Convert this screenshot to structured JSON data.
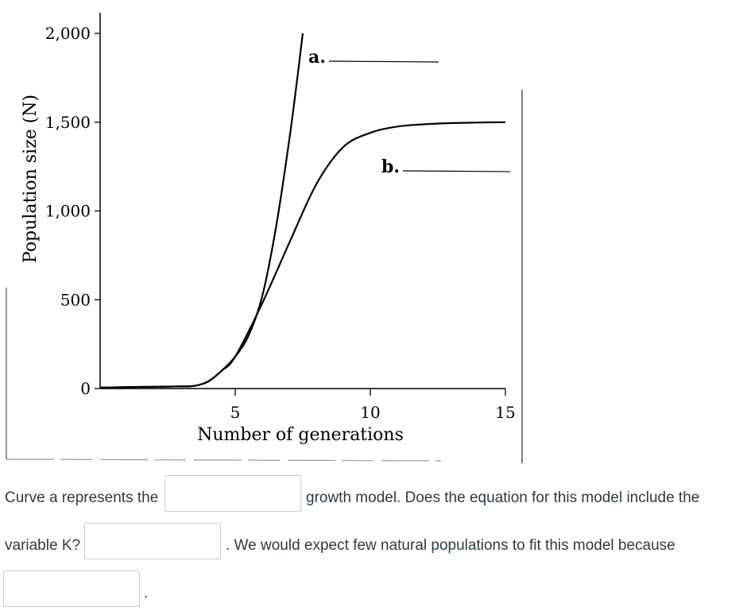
{
  "chart_data": {
    "type": "line",
    "xlabel": "Number of generations",
    "ylabel": "Population size (N)",
    "x_ticks": [
      5,
      10,
      15
    ],
    "y_ticks": [
      "0",
      "500",
      "1,000",
      "1,500",
      "2,000"
    ],
    "y_tick_values": [
      0,
      500,
      1000,
      1500,
      2000
    ],
    "xlim": [
      0,
      15
    ],
    "ylim": [
      0,
      2000
    ],
    "grid": false,
    "series": [
      {
        "name": "a.",
        "points": [
          [
            0,
            5
          ],
          [
            1,
            8
          ],
          [
            2,
            10
          ],
          [
            3,
            12
          ],
          [
            3.5,
            15
          ],
          [
            4,
            40
          ],
          [
            4.5,
            100
          ],
          [
            5,
            180
          ],
          [
            5.5,
            300
          ],
          [
            6,
            520
          ],
          [
            6.5,
            900
          ],
          [
            7,
            1400
          ],
          [
            7.3,
            1750
          ],
          [
            7.5,
            2000
          ]
        ]
      },
      {
        "name": "b.",
        "points": [
          [
            0,
            5
          ],
          [
            1,
            8
          ],
          [
            2,
            10
          ],
          [
            3,
            12
          ],
          [
            3.5,
            15
          ],
          [
            4,
            40
          ],
          [
            4.5,
            100
          ],
          [
            5,
            180
          ],
          [
            6,
            480
          ],
          [
            7,
            820
          ],
          [
            8,
            1150
          ],
          [
            9,
            1360
          ],
          [
            10,
            1440
          ],
          [
            11,
            1475
          ],
          [
            12,
            1488
          ],
          [
            13,
            1495
          ],
          [
            14,
            1498
          ],
          [
            15,
            1500
          ]
        ]
      }
    ]
  },
  "question": {
    "part1": "Curve a represents the",
    "part2": "growth model. Does the equation for this model include the",
    "part3": "variable K?",
    "part4": ". We would expect few natural populations to fit this model because",
    "part5": "."
  },
  "answers": {
    "blank1": "",
    "blank2": "",
    "blank3": ""
  }
}
